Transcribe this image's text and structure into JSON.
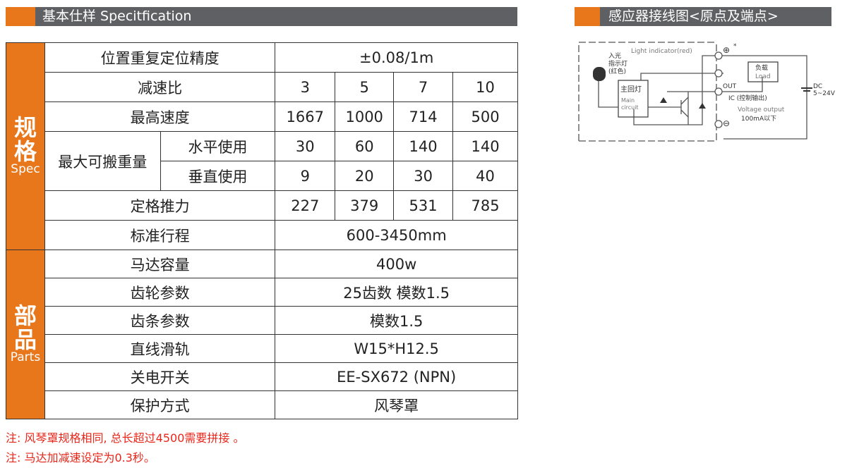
{
  "left_header": {
    "title": "基本仕样 Specitfication"
  },
  "right_header": {
    "title": "感应器接线图<原点及端点>"
  },
  "spec": {
    "group_cn": "规格",
    "group_en": "Spec",
    "rows": {
      "accuracy": {
        "label": "位置重复定位精度",
        "value": "±0.08/1m"
      },
      "ratio": {
        "label": "减速比",
        "values": [
          "3",
          "5",
          "7",
          "10"
        ]
      },
      "speed": {
        "label": "最高速度",
        "values": [
          "1667",
          "1000",
          "714",
          "500"
        ]
      },
      "payload": {
        "label": "最大可搬重量",
        "horizontal": {
          "label": "水平使用",
          "values": [
            "30",
            "60",
            "140",
            "140"
          ]
        },
        "vertical": {
          "label": "垂直使用",
          "values": [
            "9",
            "20",
            "30",
            "40"
          ]
        }
      },
      "thrust": {
        "label": "定格推力",
        "values": [
          "227",
          "379",
          "531",
          "785"
        ]
      },
      "stroke": {
        "label": "标准行程",
        "value": "600-3450mm"
      }
    }
  },
  "parts": {
    "group_cn": "部品",
    "group_en": "Parts",
    "rows": [
      {
        "label": "马达容量",
        "value": "400w"
      },
      {
        "label": "齿轮参数",
        "value": "25齿数  模数1.5"
      },
      {
        "label": "齿条参数",
        "value": "模数1.5"
      },
      {
        "label": "直线滑轨",
        "value": "W15*H12.5"
      },
      {
        "label": "关电开关",
        "value": "EE-SX672 (NPN)"
      },
      {
        "label": "保护方式",
        "value": "风琴罩"
      }
    ]
  },
  "notes": [
    "注: 风琴罩规格相同, 总长超过4500需要拼接 。",
    "注: 马达加减速设定为0.3秒。"
  ],
  "diagram": {
    "light_indicator": "Light indicator(red)",
    "incident_cn1": "入光",
    "incident_cn2": "指示灯",
    "incident_cn3": "(红色)",
    "main_cn": "主回灯",
    "main_en1": "Main",
    "main_en2": "circuit",
    "load_cn": "负载",
    "load_en": "Load",
    "out": "OUT",
    "ic": "IC (控制输出)",
    "voltage": "Voltage output",
    "current": "100mA以下",
    "dc": "DC",
    "dc_v": "5~24V",
    "plus": "⊕",
    "minus": "⊖",
    "star": "*"
  },
  "colors": {
    "accent": "#e8761a",
    "header_gray": "#5f6064",
    "note_red": "#e8261a"
  }
}
